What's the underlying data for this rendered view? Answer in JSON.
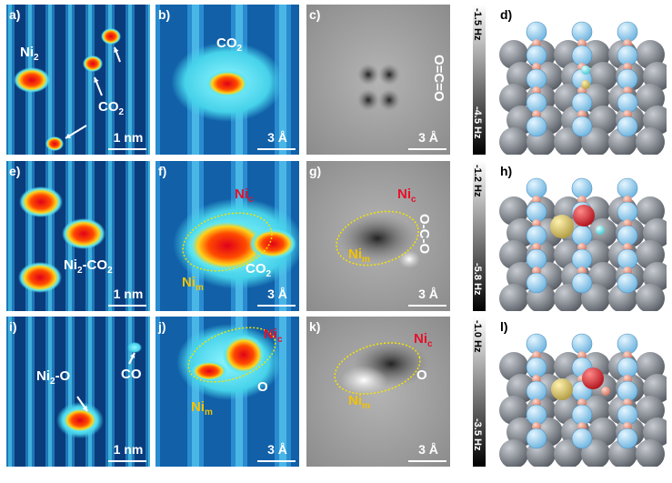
{
  "panels": [
    {
      "letter": "a)",
      "scale": "1 nm",
      "labels": [
        {
          "color": "#ffffff",
          "parts": [
            {
              "text": "Ni"
            },
            {
              "text": "2",
              "sub": true
            }
          ]
        },
        {
          "color": "#ffffff",
          "parts": [
            {
              "text": "CO"
            },
            {
              "text": "2",
              "sub": true
            }
          ]
        }
      ]
    },
    {
      "letter": "b)",
      "scale": "3 Å",
      "labels": [
        {
          "color": "#ffffff",
          "parts": [
            {
              "text": "CO"
            },
            {
              "text": "2",
              "sub": true
            }
          ]
        }
      ]
    },
    {
      "letter": "c)",
      "scale": "3 Å",
      "labels": [
        {
          "color": "#ffffff",
          "parts": [
            {
              "text": "O=C=O"
            }
          ]
        }
      ]
    },
    {
      "letter": "d)"
    },
    {
      "letter": "e)",
      "scale": "1 nm",
      "labels": [
        {
          "color": "#ffffff",
          "parts": [
            {
              "text": "Ni"
            },
            {
              "text": "2",
              "sub": true
            },
            {
              "text": "-CO"
            },
            {
              "text": "2",
              "sub": true
            }
          ]
        }
      ]
    },
    {
      "letter": "f)",
      "scale": "3 Å",
      "labels": [
        {
          "color": "#e8102a",
          "parts": [
            {
              "text": "Ni"
            },
            {
              "text": "c",
              "sub": true
            }
          ]
        },
        {
          "color": "#ffffff",
          "parts": [
            {
              "text": "CO"
            },
            {
              "text": "2",
              "sub": true
            }
          ]
        },
        {
          "color": "#f2c200",
          "parts": [
            {
              "text": "Ni"
            },
            {
              "text": "m",
              "sub": true
            }
          ]
        }
      ]
    },
    {
      "letter": "g)",
      "scale": "3 Å",
      "labels": [
        {
          "color": "#e8102a",
          "parts": [
            {
              "text": "Ni"
            },
            {
              "text": "c",
              "sub": true
            }
          ]
        },
        {
          "color": "#ffffff",
          "parts": [
            {
              "text": "O-C-O"
            }
          ]
        },
        {
          "color": "#f2c200",
          "parts": [
            {
              "text": "Ni"
            },
            {
              "text": "m",
              "sub": true
            }
          ]
        }
      ]
    },
    {
      "letter": "h)"
    },
    {
      "letter": "i)",
      "scale": "1 nm",
      "labels": [
        {
          "color": "#ffffff",
          "parts": [
            {
              "text": "Ni"
            },
            {
              "text": "2",
              "sub": true
            },
            {
              "text": "-O"
            }
          ]
        },
        {
          "color": "#ffffff",
          "parts": [
            {
              "text": "CO"
            }
          ]
        }
      ]
    },
    {
      "letter": "j)",
      "scale": "3 Å",
      "labels": [
        {
          "color": "#e8102a",
          "parts": [
            {
              "text": "Ni"
            },
            {
              "text": "c",
              "sub": true
            }
          ]
        },
        {
          "color": "#ffffff",
          "parts": [
            {
              "text": "O"
            }
          ]
        },
        {
          "color": "#f2c200",
          "parts": [
            {
              "text": "Ni"
            },
            {
              "text": "m",
              "sub": true
            }
          ]
        }
      ]
    },
    {
      "letter": "k)",
      "scale": "3 Å",
      "labels": [
        {
          "color": "#e8102a",
          "parts": [
            {
              "text": "Ni"
            },
            {
              "text": "c",
              "sub": true
            }
          ]
        },
        {
          "color": "#ffffff",
          "parts": [
            {
              "text": "O"
            }
          ]
        },
        {
          "color": "#f2c200",
          "parts": [
            {
              "text": "Ni"
            },
            {
              "text": "m",
              "sub": true
            }
          ]
        }
      ]
    },
    {
      "letter": "l)"
    }
  ],
  "colorbars": [
    {
      "top": "-1.5 Hz",
      "bottom": "-4.5 Hz"
    },
    {
      "top": "-1.2 Hz",
      "bottom": "-5.8 Hz"
    },
    {
      "top": "-1.0 Hz",
      "bottom": "-3.5 Hz"
    }
  ]
}
